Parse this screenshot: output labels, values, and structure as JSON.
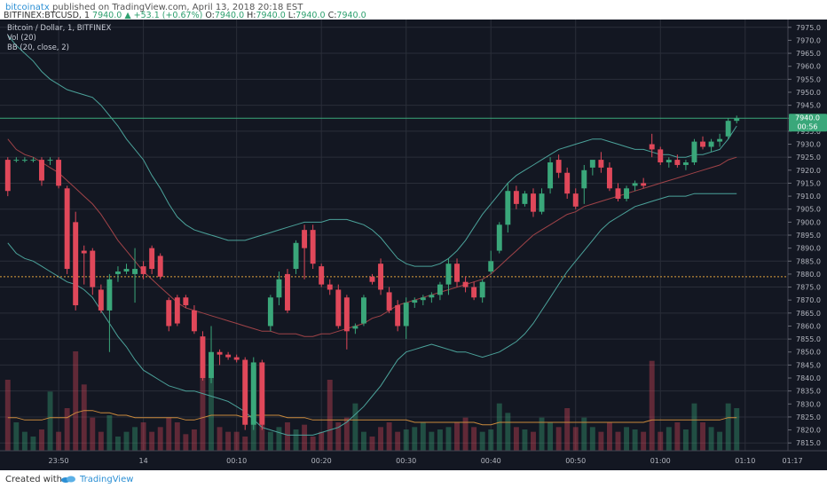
{
  "header": {
    "publisher": "bitcoinatx",
    "published_text": "published on TradingView.com, April 13, 2018 20:18 EST",
    "symbol": "BITFINEX:BTCUSD, 1",
    "last": "7940.0",
    "change": "▲ +53.1 (+0.67%)",
    "o_label": "O:",
    "o": "7940.0",
    "h_label": "H:",
    "h": "7940.0",
    "l_label": "L:",
    "l": "7940.0",
    "c_label": "C:",
    "c": "7940.0"
  },
  "legend": {
    "line1": "Bitcoin / Dollar, 1, BITFINEX",
    "line2": "Vol (20)",
    "line3": "BB (20, close, 2)"
  },
  "price_badge": {
    "value": "7940.0",
    "countdown": "00:56"
  },
  "footer": {
    "created": "Created with",
    "brand": "TradingView"
  },
  "colors": {
    "background": "#131722",
    "grid": "#2a2e39",
    "up": "#3aa77a",
    "down": "#e0485a",
    "bb_band": "#4ba29a",
    "bb_basis": "#a04348",
    "vol_ma": "#c9893c",
    "dotted": "#e0a23c"
  },
  "chart_data": {
    "type": "candlestick",
    "ylim": [
      7812,
      7978
    ],
    "y_ticks": [
      7815,
      7820,
      7825,
      7830,
      7835,
      7840,
      7845,
      7850,
      7855,
      7860,
      7865,
      7870,
      7875,
      7880,
      7885,
      7890,
      7895,
      7900,
      7905,
      7910,
      7915,
      7920,
      7925,
      7930,
      7935,
      7940,
      7945,
      7950,
      7955,
      7960,
      7965,
      7970,
      7975
    ],
    "x_ticks": [
      "23:50",
      "14",
      "00:10",
      "00:20",
      "00:30",
      "00:40",
      "00:50",
      "01:00",
      "01:10",
      "01:17"
    ],
    "dotted_price": 7879,
    "current_price": 7940,
    "candles": [
      [
        7924,
        7925,
        7910,
        7912
      ],
      [
        7924,
        7925,
        7923,
        7924
      ],
      [
        7924,
        7925,
        7923,
        7924
      ],
      [
        7924,
        7925,
        7923,
        7924
      ],
      [
        7924,
        7925,
        7914,
        7916
      ],
      [
        7924,
        7925,
        7922,
        7924
      ],
      [
        7924,
        7925,
        7913,
        7914
      ],
      [
        7913,
        7914,
        7880,
        7882
      ],
      [
        7900,
        7904,
        7866,
        7868
      ],
      [
        7889,
        7891,
        7876,
        7888
      ],
      [
        7889,
        7890,
        7872,
        7875
      ],
      [
        7874,
        7876,
        7865,
        7866
      ],
      [
        7866,
        7880,
        7850,
        7878
      ],
      [
        7880,
        7883,
        7877,
        7881
      ],
      [
        7881,
        7884,
        7880,
        7882
      ],
      [
        7880,
        7890,
        7869,
        7882
      ],
      [
        7883,
        7885,
        7878,
        7880
      ],
      [
        7890,
        7891,
        7880,
        7882
      ],
      [
        7887,
        7888,
        7878,
        7879
      ],
      [
        7870,
        7871,
        7858,
        7860
      ],
      [
        7871,
        7872,
        7860,
        7861
      ],
      [
        7871,
        7872,
        7867,
        7868
      ],
      [
        7866,
        7868,
        7857,
        7858
      ],
      [
        7856,
        7858,
        7839,
        7840
      ],
      [
        7840,
        7860,
        7838,
        7850
      ],
      [
        7850,
        7851,
        7845,
        7849
      ],
      [
        7849,
        7850,
        7847,
        7848
      ],
      [
        7848,
        7849,
        7846,
        7847
      ],
      [
        7847,
        7848,
        7820,
        7822
      ],
      [
        7822,
        7848,
        7820,
        7846
      ],
      [
        7846,
        7847,
        7820,
        7822
      ],
      [
        7860,
        7872,
        7858,
        7871
      ],
      [
        7871,
        7881,
        7868,
        7878
      ],
      [
        7880,
        7882,
        7865,
        7866
      ],
      [
        7882,
        7893,
        7880,
        7892
      ],
      [
        7897,
        7899,
        7878,
        7890
      ],
      [
        7897,
        7899,
        7882,
        7884
      ],
      [
        7883,
        7884,
        7875,
        7876
      ],
      [
        7876,
        7878,
        7872,
        7874
      ],
      [
        7874,
        7876,
        7859,
        7860
      ],
      [
        7871,
        7872,
        7851,
        7858
      ],
      [
        7859,
        7861,
        7857,
        7860
      ],
      [
        7861,
        7872,
        7860,
        7871
      ],
      [
        7879,
        7880,
        7876,
        7877
      ],
      [
        7884,
        7886,
        7872,
        7874
      ],
      [
        7873,
        7875,
        7865,
        7866
      ],
      [
        7868,
        7870,
        7858,
        7860
      ],
      [
        7860,
        7871,
        7855,
        7869
      ],
      [
        7869,
        7871,
        7867,
        7870
      ],
      [
        7870,
        7872,
        7868,
        7871
      ],
      [
        7871,
        7873,
        7869,
        7872
      ],
      [
        7872,
        7877,
        7870,
        7876
      ],
      [
        7876,
        7886,
        7872,
        7884
      ],
      [
        7884,
        7886,
        7875,
        7877
      ],
      [
        7877,
        7879,
        7873,
        7875
      ],
      [
        7875,
        7877,
        7870,
        7871
      ],
      [
        7871,
        7878,
        7869,
        7877
      ],
      [
        7881,
        7889,
        7880,
        7885
      ],
      [
        7889,
        7900,
        7888,
        7899
      ],
      [
        7899,
        7915,
        7896,
        7912
      ],
      [
        7912,
        7914,
        7905,
        7907
      ],
      [
        7907,
        7912,
        7906,
        7911
      ],
      [
        7911,
        7913,
        7902,
        7904
      ],
      [
        7904,
        7913,
        7903,
        7911
      ],
      [
        7913,
        7925,
        7911,
        7923
      ],
      [
        7924,
        7926,
        7917,
        7919
      ],
      [
        7919,
        7921,
        7909,
        7911
      ],
      [
        7911,
        7913,
        7905,
        7906
      ],
      [
        7913,
        7922,
        7907,
        7920
      ],
      [
        7921,
        7923,
        7918,
        7924
      ],
      [
        7924,
        7927,
        7919,
        7921
      ],
      [
        7921,
        7923,
        7912,
        7913
      ],
      [
        7913,
        7915,
        7908,
        7909
      ],
      [
        7909,
        7914,
        7908,
        7913
      ],
      [
        7914,
        7916,
        7912,
        7915
      ],
      [
        7915,
        7917,
        7913,
        7914
      ],
      [
        7930,
        7934,
        7925,
        7928
      ],
      [
        7928,
        7929,
        7922,
        7923
      ],
      [
        7923,
        7925,
        7921,
        7924
      ],
      [
        7924,
        7926,
        7921,
        7922
      ],
      [
        7922,
        7924,
        7920,
        7923
      ],
      [
        7923,
        7932,
        7922,
        7931
      ],
      [
        7931,
        7933,
        7928,
        7929
      ],
      [
        7929,
        7932,
        7927,
        7931
      ],
      [
        7931,
        7934,
        7929,
        7932
      ],
      [
        7933,
        7940,
        7932,
        7939
      ],
      [
        7939,
        7941,
        7938,
        7940
      ]
    ],
    "volumes": [
      30,
      12,
      8,
      6,
      9,
      25,
      8,
      18,
      42,
      28,
      14,
      8,
      15,
      6,
      8,
      10,
      12,
      8,
      10,
      14,
      12,
      7,
      9,
      40,
      32,
      10,
      8,
      8,
      6,
      35,
      22,
      8,
      10,
      12,
      9,
      11,
      6,
      8,
      30,
      12,
      14,
      20,
      8,
      6,
      10,
      12,
      8,
      9,
      10,
      12,
      8,
      9,
      10,
      12,
      14,
      10,
      8,
      9,
      20,
      16,
      10,
      9,
      8,
      14,
      12,
      10,
      18,
      10,
      14,
      10,
      8,
      12,
      8,
      10,
      9,
      8,
      38,
      8,
      10,
      12,
      9,
      20,
      12,
      10,
      8,
      20,
      18
    ],
    "bb_upper": [
      7972,
      7968,
      7965,
      7962,
      7958,
      7955,
      7953,
      7951,
      7950,
      7949,
      7948,
      7945,
      7941,
      7937,
      7932,
      7928,
      7924,
      7918,
      7913,
      7907,
      7902,
      7899,
      7897,
      7896,
      7895,
      7894,
      7893,
      7893,
      7893,
      7894,
      7895,
      7896,
      7897,
      7898,
      7899,
      7900,
      7900,
      7900,
      7901,
      7901,
      7901,
      7900,
      7899,
      7897,
      7894,
      7890,
      7886,
      7884,
      7883,
      7883,
      7883,
      7884,
      7886,
      7889,
      7893,
      7898,
      7903,
      7907,
      7911,
      7915,
      7918,
      7920,
      7922,
      7924,
      7926,
      7928,
      7929,
      7930,
      7931,
      7932,
      7932,
      7931,
      7930,
      7929,
      7928,
      7928,
      7927,
      7926,
      7926,
      7925,
      7925,
      7926,
      7926,
      7927,
      7928,
      7932,
      7937
    ],
    "bb_basis": [
      7932,
      7928,
      7926,
      7925,
      7923,
      7921,
      7919,
      7916,
      7913,
      7910,
      7907,
      7903,
      7898,
      7893,
      7889,
      7885,
      7881,
      7878,
      7875,
      7872,
      7869,
      7867,
      7866,
      7865,
      7864,
      7863,
      7862,
      7861,
      7860,
      7859,
      7858,
      7858,
      7857,
      7857,
      7857,
      7856,
      7856,
      7857,
      7857,
      7858,
      7859,
      7860,
      7861,
      7863,
      7864,
      7866,
      7868,
      7869,
      7870,
      7871,
      7872,
      7873,
      7874,
      7875,
      7876,
      7877,
      7878,
      7880,
      7883,
      7886,
      7889,
      7892,
      7895,
      7897,
      7899,
      7901,
      7903,
      7904,
      7906,
      7907,
      7908,
      7909,
      7910,
      7911,
      7912,
      7913,
      7914,
      7915,
      7916,
      7917,
      7918,
      7919,
      7920,
      7921,
      7922,
      7924,
      7925
    ],
    "bb_lower": [
      7892,
      7888,
      7886,
      7885,
      7883,
      7881,
      7879,
      7877,
      7876,
      7874,
      7871,
      7866,
      7861,
      7856,
      7852,
      7847,
      7843,
      7841,
      7839,
      7837,
      7836,
      7835,
      7835,
      7834,
      7833,
      7832,
      7831,
      7829,
      7827,
      7824,
      7821,
      7820,
      7819,
      7818,
      7818,
      7818,
      7818,
      7819,
      7820,
      7821,
      7823,
      7826,
      7829,
      7833,
      7837,
      7842,
      7847,
      7850,
      7851,
      7852,
      7853,
      7852,
      7851,
      7850,
      7850,
      7849,
      7848,
      7849,
      7850,
      7852,
      7854,
      7857,
      7861,
      7866,
      7871,
      7876,
      7881,
      7885,
      7889,
      7893,
      7897,
      7900,
      7902,
      7904,
      7906,
      7907,
      7908,
      7909,
      7910,
      7910,
      7910,
      7911,
      7911,
      7911,
      7911,
      7911,
      7911
    ],
    "vol_ma": [
      14,
      14,
      13,
      13,
      13,
      14,
      14,
      14,
      16,
      17,
      17,
      16,
      16,
      15,
      15,
      14,
      14,
      14,
      14,
      14,
      14,
      13,
      13,
      14,
      15,
      15,
      15,
      15,
      14,
      15,
      15,
      15,
      15,
      14,
      14,
      14,
      13,
      13,
      13,
      13,
      13,
      13,
      13,
      13,
      13,
      13,
      13,
      13,
      12,
      12,
      12,
      12,
      12,
      12,
      12,
      12,
      11,
      11,
      12,
      12,
      12,
      12,
      12,
      12,
      12,
      12,
      12,
      12,
      12,
      12,
      12,
      12,
      12,
      12,
      12,
      12,
      13,
      13,
      13,
      13,
      13,
      13,
      13,
      13,
      13,
      14,
      14
    ]
  }
}
